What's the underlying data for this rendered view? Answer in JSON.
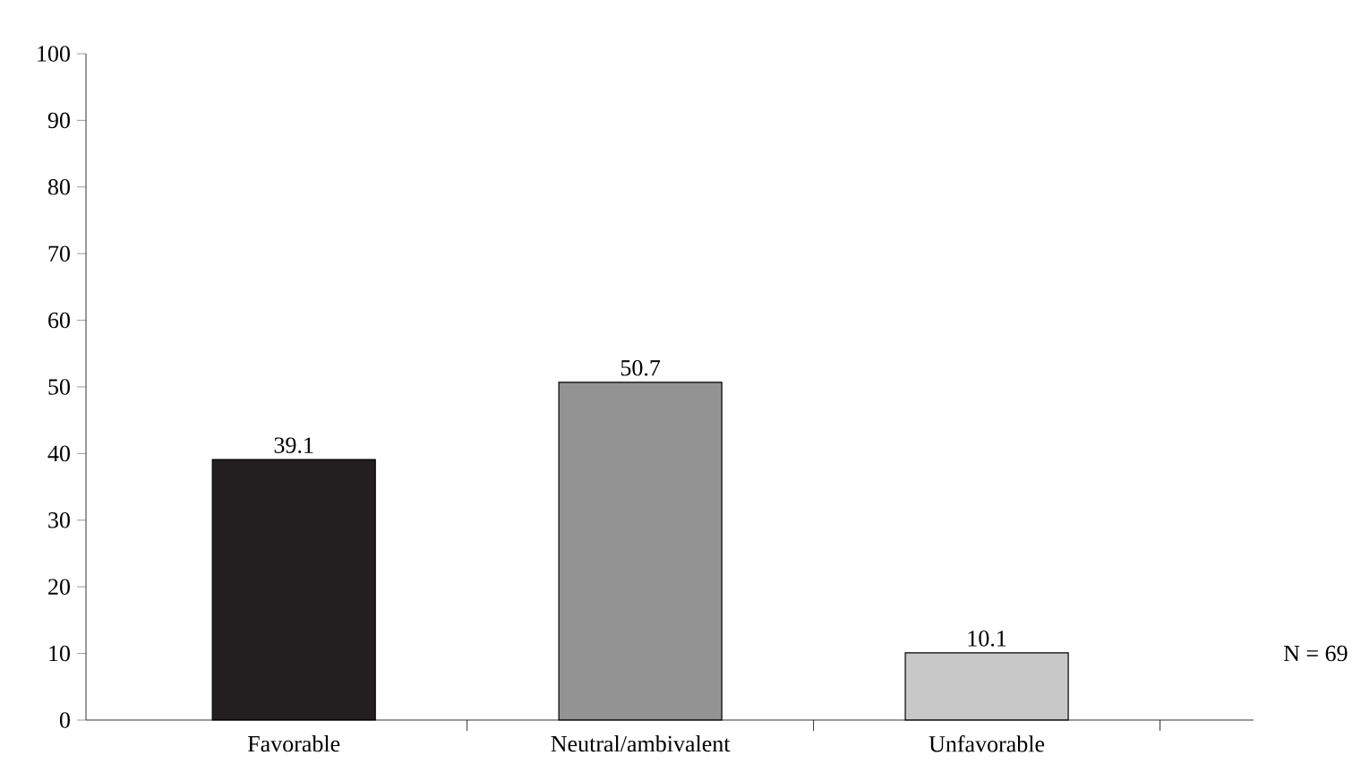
{
  "chart_data": {
    "type": "bar",
    "categories": [
      "Favorable",
      "Neutral/ambivalent",
      "Unfavorable"
    ],
    "values": [
      39.1,
      50.7,
      10.1
    ],
    "colors": [
      "#231f20",
      "#939393",
      "#c8c8c8"
    ],
    "ylim": [
      0,
      100
    ],
    "yticks": [
      0,
      10,
      20,
      30,
      40,
      50,
      60,
      70,
      80,
      90,
      100
    ],
    "data_labels": true,
    "grid": false,
    "annotations": [
      "N = 69"
    ]
  }
}
